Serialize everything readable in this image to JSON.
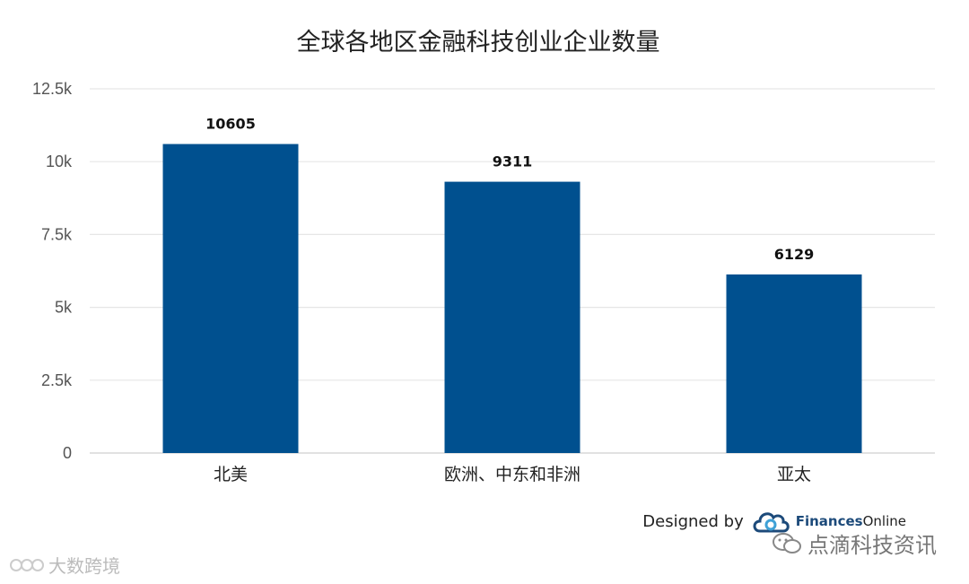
{
  "chart_data": {
    "type": "bar",
    "title": "全球各地区金融科技创业企业数量",
    "categories": [
      "北美",
      "欧洲、中东和非洲",
      "亚太"
    ],
    "values": [
      10605,
      9311,
      6129
    ],
    "data_labels": [
      "10605",
      "9311",
      "6129"
    ],
    "ylim": [
      0,
      12500
    ],
    "yticks": [
      0,
      2500,
      5000,
      7500,
      10000,
      12500
    ],
    "ytick_labels": [
      "0",
      "2.5k",
      "5k",
      "7.5k",
      "10k",
      "12.5k"
    ],
    "bar_color": "#00508f",
    "grid": true
  },
  "credit": {
    "designed_by": "Designed by",
    "logo_part1": "Finances",
    "logo_part2": "Online",
    "logo_icon": "cloud-icon"
  },
  "watermarks": {
    "right_text": "点滴科技资讯",
    "right_icon": "wechat-icon",
    "left_text": "大数跨境",
    "left_icon": "logo-icon"
  }
}
